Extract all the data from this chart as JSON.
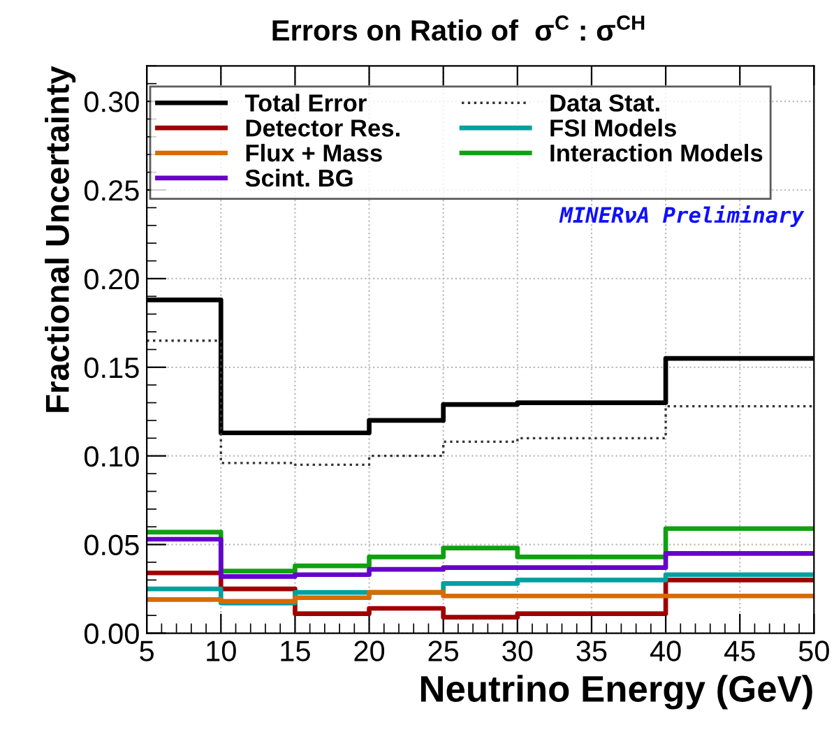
{
  "chart_data": {
    "type": "histogram",
    "title": "Errors on Ratio of  σ$^{C}$ : σ$^{CH}$",
    "xlabel": "Neutrino Energy (GeV)",
    "ylabel": "Fractional Uncertainty",
    "bins": [
      5,
      10,
      15,
      20,
      25,
      30,
      40,
      50
    ],
    "series": [
      {
        "name": "Total Error",
        "color": "#000000",
        "values": [
          0.188,
          0.113,
          0.113,
          0.12,
          0.129,
          0.13,
          0.155
        ]
      },
      {
        "name": "Data Stat.",
        "color": "#333333",
        "line_style": "dotted",
        "values": [
          0.165,
          0.096,
          0.095,
          0.1,
          0.108,
          0.11,
          0.128
        ]
      },
      {
        "name": "Detector Res.",
        "color": "#a00000",
        "values": [
          0.034,
          0.025,
          0.011,
          0.014,
          0.009,
          0.011,
          0.03
        ]
      },
      {
        "name": "FSI Models",
        "color": "#00a0a0",
        "values": [
          0.025,
          0.017,
          0.023,
          0.023,
          0.028,
          0.03,
          0.033
        ]
      },
      {
        "name": "Flux + Mass",
        "color": "#d86b00",
        "values": [
          0.019,
          0.018,
          0.02,
          0.023,
          0.021,
          0.021,
          0.021
        ]
      },
      {
        "name": "Interaction Models",
        "color": "#10a010",
        "values": [
          0.057,
          0.035,
          0.038,
          0.043,
          0.048,
          0.043,
          0.059
        ]
      },
      {
        "name": "Scint. BG",
        "color": "#6600cc",
        "values": [
          0.053,
          0.032,
          0.033,
          0.036,
          0.037,
          0.037,
          0.045
        ]
      }
    ],
    "annotations": [
      "MINERνA Preliminary"
    ],
    "xlim": [
      5,
      50
    ],
    "ylim": [
      0,
      0.32
    ],
    "xticks": [
      5,
      10,
      15,
      20,
      25,
      30,
      35,
      40,
      45,
      50
    ],
    "yticks": [
      {
        "value": 0,
        "label": "0.00"
      },
      {
        "value": 0.05,
        "label": "0.05"
      },
      {
        "value": 0.1,
        "label": "0.10"
      },
      {
        "value": 0.15,
        "label": "0.15"
      },
      {
        "value": 0.2,
        "label": "0.20"
      },
      {
        "value": 0.25,
        "label": "0.25"
      },
      {
        "value": 0.3,
        "label": "0.30"
      }
    ],
    "grid": true,
    "legend": "top",
    "line_style": "solid"
  }
}
